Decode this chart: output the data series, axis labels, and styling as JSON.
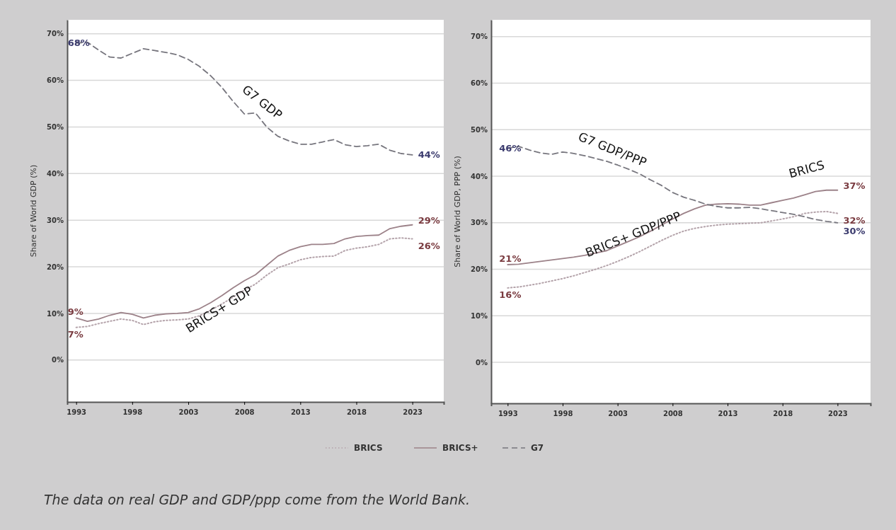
{
  "chart_data": [
    {
      "type": "line",
      "ylabel": "Share of World GDP (%)",
      "xlim": [
        1992.2,
        2025.8
      ],
      "ylim": [
        -9,
        73
      ],
      "xticks": [
        1993,
        1998,
        2003,
        2008,
        2013,
        2018,
        2023
      ],
      "yticks": [
        {
          "value": 0,
          "label": "0%"
        },
        {
          "value": 10,
          "label": "10%"
        },
        {
          "value": 20,
          "label": "20%"
        },
        {
          "value": 30,
          "label": "30%"
        },
        {
          "value": 40,
          "label": "40%"
        },
        {
          "value": 50,
          "label": "50%"
        },
        {
          "value": 60,
          "label": "60%"
        },
        {
          "value": 70,
          "label": "70%"
        }
      ],
      "grid": "y",
      "legend": "bottom",
      "x": [
        1993,
        1994,
        1995,
        1996,
        1997,
        1998,
        1999,
        2000,
        2001,
        2002,
        2003,
        2004,
        2005,
        2006,
        2007,
        2008,
        2009,
        2010,
        2011,
        2012,
        2013,
        2014,
        2015,
        2016,
        2017,
        2018,
        2019,
        2020,
        2021,
        2022,
        2023
      ],
      "series": [
        {
          "name": "BRICS",
          "color": "#b4a3aa",
          "line_style": "dotted",
          "values": [
            7,
            7.2,
            7.8,
            8.3,
            8.8,
            8.5,
            7.6,
            8.2,
            8.5,
            8.6,
            8.8,
            9.5,
            10.7,
            12,
            13.5,
            15,
            16.3,
            18.2,
            19.8,
            20.6,
            21.5,
            22,
            22.2,
            22.3,
            23.5,
            24,
            24.3,
            24.8,
            26,
            26.2,
            26
          ],
          "value_labels": [
            "7%",
            null,
            null,
            null,
            null,
            null,
            null,
            null,
            null,
            null,
            null,
            null,
            null,
            null,
            null,
            null,
            null,
            null,
            null,
            null,
            null,
            null,
            null,
            null,
            null,
            null,
            null,
            null,
            null,
            null,
            "26%"
          ]
        },
        {
          "name": "BRICS+",
          "color": "#9c8289",
          "line_style": "solid",
          "values": [
            9,
            8.3,
            8.8,
            9.6,
            10.2,
            9.8,
            9,
            9.6,
            9.9,
            10,
            10.2,
            11,
            12.3,
            13.8,
            15.5,
            17,
            18.3,
            20.3,
            22.3,
            23.5,
            24.3,
            24.8,
            24.8,
            25,
            26,
            26.5,
            26.7,
            26.8,
            28.2,
            28.7,
            29
          ],
          "value_labels": [
            "9%",
            null,
            null,
            null,
            null,
            null,
            null,
            null,
            null,
            null,
            null,
            null,
            null,
            null,
            null,
            null,
            null,
            null,
            null,
            null,
            null,
            null,
            null,
            null,
            null,
            null,
            null,
            null,
            null,
            null,
            "29%"
          ]
        },
        {
          "name": "G7",
          "color": "#77767e",
          "line_style": "dashed",
          "values": [
            68,
            68.2,
            66.5,
            65,
            64.8,
            65.8,
            66.8,
            66.4,
            66,
            65.5,
            64.5,
            63,
            61,
            58.5,
            55.5,
            52.8,
            53,
            50,
            48,
            47,
            46.3,
            46.3,
            46.8,
            47.3,
            46.2,
            45.8,
            46,
            46.3,
            45,
            44.3,
            44
          ],
          "value_labels": [
            "68%",
            null,
            null,
            null,
            null,
            null,
            null,
            null,
            null,
            null,
            null,
            null,
            null,
            null,
            null,
            null,
            null,
            null,
            null,
            null,
            null,
            null,
            null,
            null,
            null,
            null,
            null,
            null,
            null,
            null,
            "44%"
          ]
        }
      ],
      "annotations": [
        "G7 GDP",
        "BRICS+ GDP",
        "The data on real GDP and GDP/ppp come from the World Bank."
      ]
    },
    {
      "type": "line",
      "ylabel": "Share of World GDP, PPP (%)",
      "xlim": [
        1991.5,
        2026
      ],
      "ylim": [
        -8.8,
        73.6
      ],
      "xticks": [
        1993,
        1998,
        2003,
        2008,
        2013,
        2018,
        2023
      ],
      "yticks": [
        {
          "value": 0,
          "label": "0%"
        },
        {
          "value": 10,
          "label": "10%"
        },
        {
          "value": 20,
          "label": "20%"
        },
        {
          "value": 30,
          "label": "30%"
        },
        {
          "value": 40,
          "label": "40%"
        },
        {
          "value": 50,
          "label": "50%"
        },
        {
          "value": 60,
          "label": "60%"
        },
        {
          "value": 70,
          "label": "70%"
        }
      ],
      "grid": "y",
      "x": [
        1993,
        1994,
        1995,
        1996,
        1997,
        1998,
        1999,
        2000,
        2001,
        2002,
        2003,
        2004,
        2005,
        2006,
        2007,
        2008,
        2009,
        2010,
        2011,
        2012,
        2013,
        2014,
        2015,
        2016,
        2017,
        2018,
        2019,
        2020,
        2021,
        2022,
        2023
      ],
      "series": [
        {
          "color": "#b4a3aa",
          "line_style": "dotted",
          "values": [
            16,
            16.2,
            16.6,
            17,
            17.5,
            18,
            18.6,
            19.3,
            20,
            20.8,
            21.7,
            22.7,
            23.8,
            25,
            26.2,
            27.3,
            28.2,
            28.8,
            29.2,
            29.5,
            29.7,
            29.8,
            29.9,
            30,
            30.4,
            30.8,
            31.3,
            32,
            32.3,
            32.4,
            32
          ],
          "value_labels": [
            "16%",
            null,
            null,
            null,
            null,
            null,
            null,
            null,
            null,
            null,
            null,
            null,
            null,
            null,
            null,
            null,
            null,
            null,
            null,
            null,
            null,
            null,
            null,
            null,
            null,
            null,
            null,
            null,
            null,
            null,
            "32%"
          ]
        },
        {
          "color": "#9c8289",
          "line_style": "solid",
          "values": [
            21,
            21.1,
            21.4,
            21.7,
            22,
            22.3,
            22.6,
            23,
            23.5,
            24,
            25,
            26,
            27,
            28.2,
            29.5,
            30.8,
            32,
            33,
            33.8,
            34,
            34.1,
            34,
            33.8,
            33.8,
            34.3,
            34.8,
            35.3,
            36,
            36.7,
            37,
            37
          ],
          "value_labels": [
            "21%",
            null,
            null,
            null,
            null,
            null,
            null,
            null,
            null,
            null,
            null,
            null,
            null,
            null,
            null,
            null,
            null,
            null,
            null,
            null,
            null,
            null,
            null,
            null,
            null,
            null,
            null,
            null,
            null,
            null,
            "37%"
          ]
        },
        {
          "color": "#77767e",
          "line_style": "dashed",
          "values": [
            46,
            46.4,
            45.6,
            45,
            44.7,
            45.2,
            44.9,
            44.4,
            43.8,
            43.2,
            42.4,
            41.5,
            40.5,
            39.2,
            38,
            36.5,
            35.5,
            34.8,
            34,
            33.5,
            33.2,
            33.2,
            33.3,
            33,
            32.6,
            32.2,
            31.8,
            31.3,
            30.7,
            30.3,
            30
          ],
          "value_labels": [
            "46%",
            null,
            null,
            null,
            null,
            null,
            null,
            null,
            null,
            null,
            null,
            null,
            null,
            null,
            null,
            null,
            null,
            null,
            null,
            null,
            null,
            null,
            null,
            null,
            null,
            null,
            null,
            null,
            null,
            null,
            "30%"
          ]
        }
      ],
      "annotations": [
        "G7 GDP/PPP",
        "BRICS",
        "BRICS+ GDP/PPP"
      ]
    }
  ]
}
